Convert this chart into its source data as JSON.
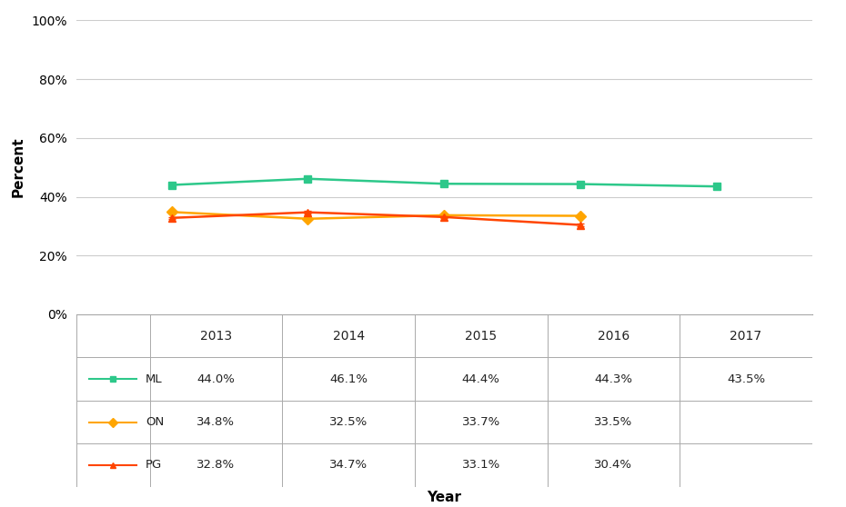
{
  "series": [
    {
      "label": "ML",
      "color": "#2DC88A",
      "marker": "s",
      "x": [
        2013,
        2014,
        2015,
        2016,
        2017
      ],
      "y": [
        44.0,
        46.1,
        44.4,
        44.3,
        43.5
      ],
      "yerr": [
        0.6,
        0.6,
        0.6,
        0.6,
        0.6
      ]
    },
    {
      "label": "ON",
      "color": "#FFA500",
      "marker": "D",
      "x": [
        2013,
        2014,
        2015,
        2016
      ],
      "y": [
        34.8,
        32.5,
        33.7,
        33.5
      ],
      "yerr": [
        0.4,
        0.4,
        0.4,
        0.4
      ]
    },
    {
      "label": "PG",
      "color": "#FF4500",
      "marker": "^",
      "x": [
        2013,
        2014,
        2015,
        2016
      ],
      "y": [
        32.8,
        34.7,
        33.1,
        30.4
      ],
      "yerr": [
        0.4,
        0.4,
        0.4,
        0.4
      ]
    }
  ],
  "table_years": [
    2013,
    2014,
    2015,
    2016,
    2017
  ],
  "table_rows": [
    {
      "label": "ML",
      "values": [
        "44.0%",
        "46.1%",
        "44.4%",
        "44.3%",
        "43.5%"
      ]
    },
    {
      "label": "ON",
      "values": [
        "34.8%",
        "32.5%",
        "33.7%",
        "33.5%",
        ""
      ]
    },
    {
      "label": "PG",
      "values": [
        "32.8%",
        "34.7%",
        "33.1%",
        "30.4%",
        ""
      ]
    }
  ],
  "xlabel": "Year",
  "ylabel": "Percent",
  "ylim": [
    0,
    100
  ],
  "yticks": [
    0,
    20,
    40,
    60,
    80,
    100
  ],
  "ytick_labels": [
    "0%",
    "20%",
    "40%",
    "60%",
    "80%",
    "100%"
  ],
  "xlim": [
    2012.3,
    2017.7
  ],
  "xticks": [
    2013,
    2014,
    2015,
    2016,
    2017
  ],
  "background_color": "#FFFFFF",
  "grid_color": "#CCCCCC",
  "axis_fontsize": 11,
  "tick_fontsize": 10,
  "table_fontsize": 9.5
}
